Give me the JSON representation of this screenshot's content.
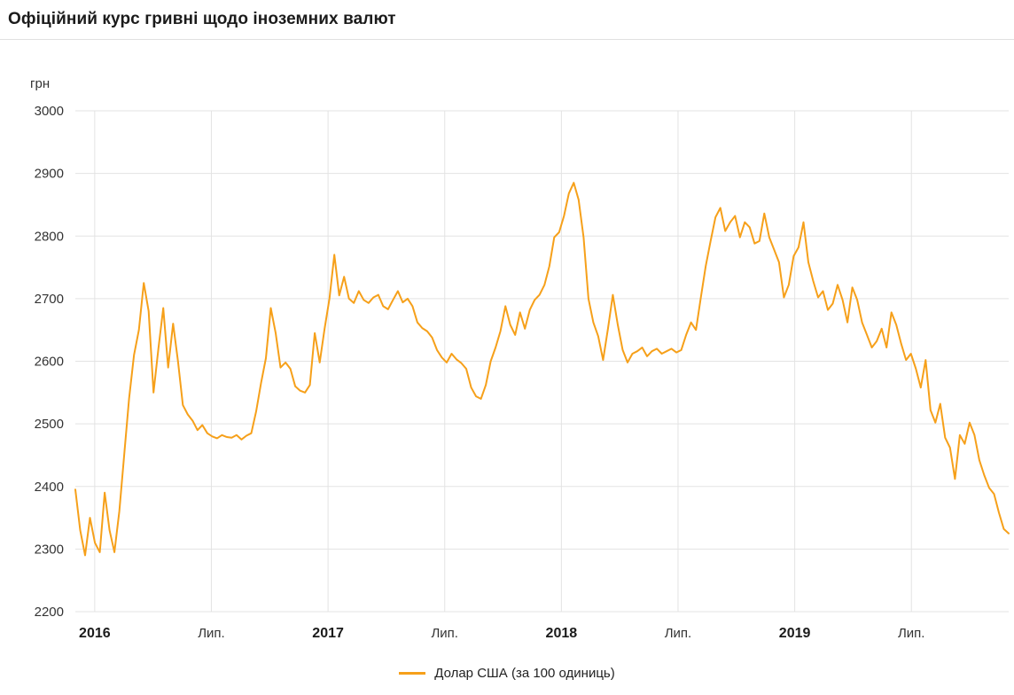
{
  "page": {
    "title": "Офіційний курс гривні щодо іноземних валют"
  },
  "chart_data": {
    "type": "line",
    "title": "Офіційний курс гривні щодо іноземних валют",
    "y_axis_title": "грн",
    "ylim": [
      2200,
      3000
    ],
    "y_ticks": [
      2200,
      2300,
      2400,
      2500,
      2600,
      2700,
      2800,
      2900,
      3000
    ],
    "x_start": 2015.917,
    "x_end": 2019.917,
    "x_ticks": [
      {
        "value": 2016.0,
        "label": "2016",
        "bold": true
      },
      {
        "value": 2016.5,
        "label": "Лип.",
        "bold": false
      },
      {
        "value": 2017.0,
        "label": "2017",
        "bold": true
      },
      {
        "value": 2017.5,
        "label": "Лип.",
        "bold": false
      },
      {
        "value": 2018.0,
        "label": "2018",
        "bold": true
      },
      {
        "value": 2018.5,
        "label": "Лип.",
        "bold": false
      },
      {
        "value": 2019.0,
        "label": "2019",
        "bold": true
      },
      {
        "value": 2019.5,
        "label": "Лип.",
        "bold": false
      }
    ],
    "grid": true,
    "legend_position": "bottom",
    "series": [
      {
        "name": "Долар США (за 100 одиниць)",
        "color": "#F6A01A",
        "values": [
          2395,
          2330,
          2290,
          2350,
          2310,
          2295,
          2390,
          2330,
          2295,
          2360,
          2450,
          2540,
          2610,
          2650,
          2725,
          2680,
          2550,
          2620,
          2685,
          2590,
          2660,
          2600,
          2530,
          2515,
          2505,
          2490,
          2498,
          2485,
          2480,
          2477,
          2482,
          2479,
          2478,
          2482,
          2475,
          2481,
          2485,
          2520,
          2565,
          2605,
          2685,
          2645,
          2590,
          2598,
          2588,
          2560,
          2553,
          2550,
          2562,
          2645,
          2598,
          2652,
          2700,
          2770,
          2705,
          2735,
          2700,
          2693,
          2712,
          2698,
          2693,
          2702,
          2706,
          2688,
          2683,
          2698,
          2712,
          2694,
          2700,
          2688,
          2662,
          2653,
          2648,
          2638,
          2618,
          2606,
          2598,
          2612,
          2603,
          2597,
          2588,
          2558,
          2544,
          2540,
          2562,
          2600,
          2622,
          2648,
          2688,
          2658,
          2642,
          2678,
          2652,
          2682,
          2698,
          2706,
          2722,
          2752,
          2798,
          2806,
          2832,
          2868,
          2885,
          2858,
          2798,
          2700,
          2662,
          2640,
          2602,
          2652,
          2706,
          2658,
          2618,
          2598,
          2612,
          2616,
          2622,
          2608,
          2616,
          2620,
          2612,
          2616,
          2620,
          2614,
          2618,
          2642,
          2662,
          2650,
          2702,
          2752,
          2792,
          2830,
          2845,
          2808,
          2822,
          2832,
          2798,
          2822,
          2814,
          2788,
          2792,
          2836,
          2798,
          2778,
          2758,
          2702,
          2722,
          2768,
          2782,
          2822,
          2758,
          2728,
          2702,
          2712,
          2682,
          2692,
          2722,
          2698,
          2662,
          2718,
          2698,
          2662,
          2642,
          2622,
          2632,
          2652,
          2622,
          2678,
          2658,
          2628,
          2602,
          2612,
          2588,
          2558,
          2602,
          2522,
          2502,
          2532,
          2478,
          2462,
          2412,
          2482,
          2468,
          2502,
          2482,
          2442,
          2418,
          2398,
          2388,
          2358,
          2332,
          2325
        ]
      }
    ]
  },
  "colors": {
    "line": "#F6A01A",
    "grid": "#e3e3e3",
    "tick_text": "#333333",
    "title_text": "#1b1b1b"
  }
}
